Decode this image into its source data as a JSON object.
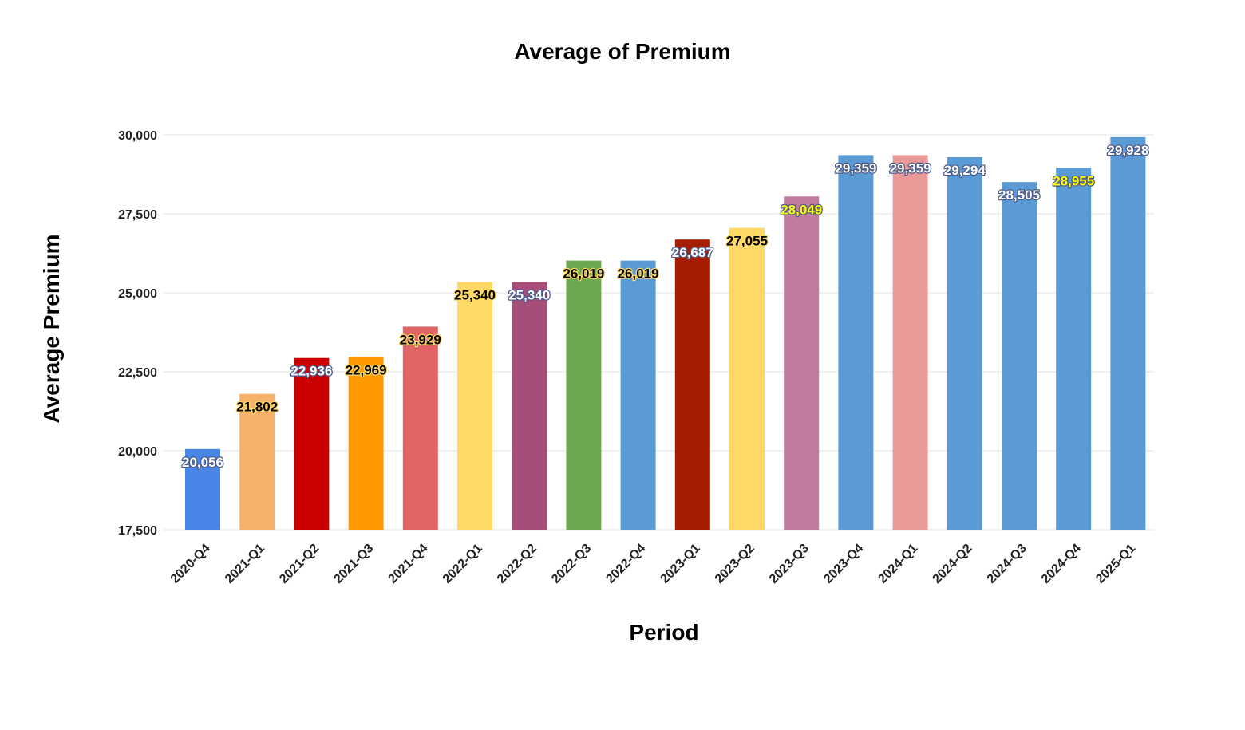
{
  "chart_data": {
    "type": "bar",
    "title": "Average of Premium",
    "xlabel": "Period",
    "ylabel": "Average Premium",
    "ylim": [
      17500,
      30000
    ],
    "yticks": [
      17500,
      20000,
      22500,
      25000,
      27500,
      30000
    ],
    "ytick_labels": [
      "17,500",
      "20,000",
      "22,500",
      "25,000",
      "27,500",
      "30,000"
    ],
    "grid": true,
    "legend": "none",
    "categories": [
      "2020-Q4",
      "2021-Q1",
      "2021-Q2",
      "2021-Q3",
      "2021-Q4",
      "2022-Q1",
      "2022-Q2",
      "2022-Q3",
      "2022-Q4",
      "2023-Q1",
      "2023-Q2",
      "2023-Q3",
      "2023-Q4",
      "2024-Q1",
      "2024-Q2",
      "2024-Q3",
      "2024-Q4",
      "2025-Q1"
    ],
    "values": [
      20056,
      21802,
      22936,
      22969,
      23929,
      25340,
      25340,
      26019,
      26019,
      26687,
      27055,
      28049,
      29359,
      29359,
      29294,
      28505,
      28955,
      29928
    ],
    "value_labels": [
      "20,056",
      "21,802",
      "22,936",
      "22,969",
      "23,929",
      "25,340",
      "25,340",
      "26,019",
      "26,019",
      "26,687",
      "27,055",
      "28,049",
      "29,359",
      "29,359",
      "29,294",
      "28,505",
      "28,955",
      "29,928"
    ],
    "bar_colors": [
      "#4a86e8",
      "#f6b26b",
      "#cc0000",
      "#ff9900",
      "#e06666",
      "#ffd966",
      "#a64d79",
      "#6aa84f",
      "#5b9bd5",
      "#a61c00",
      "#ffd966",
      "#c27ba0",
      "#5b9bd5",
      "#ea9999",
      "#5b9bd5",
      "#5b9bd5",
      "#5b9bd5",
      "#5b9bd5"
    ],
    "label_colors": [
      "#ffffff",
      "#000000",
      "#ffffff",
      "#000000",
      "#000000",
      "#000000",
      "#ffffff",
      "#000000",
      "#000000",
      "#ffffff",
      "#000000",
      "#ffff00",
      "#ffffff",
      "#ffffff",
      "#ffffff",
      "#ffffff",
      "#ffff00",
      "#ffffff"
    ]
  }
}
